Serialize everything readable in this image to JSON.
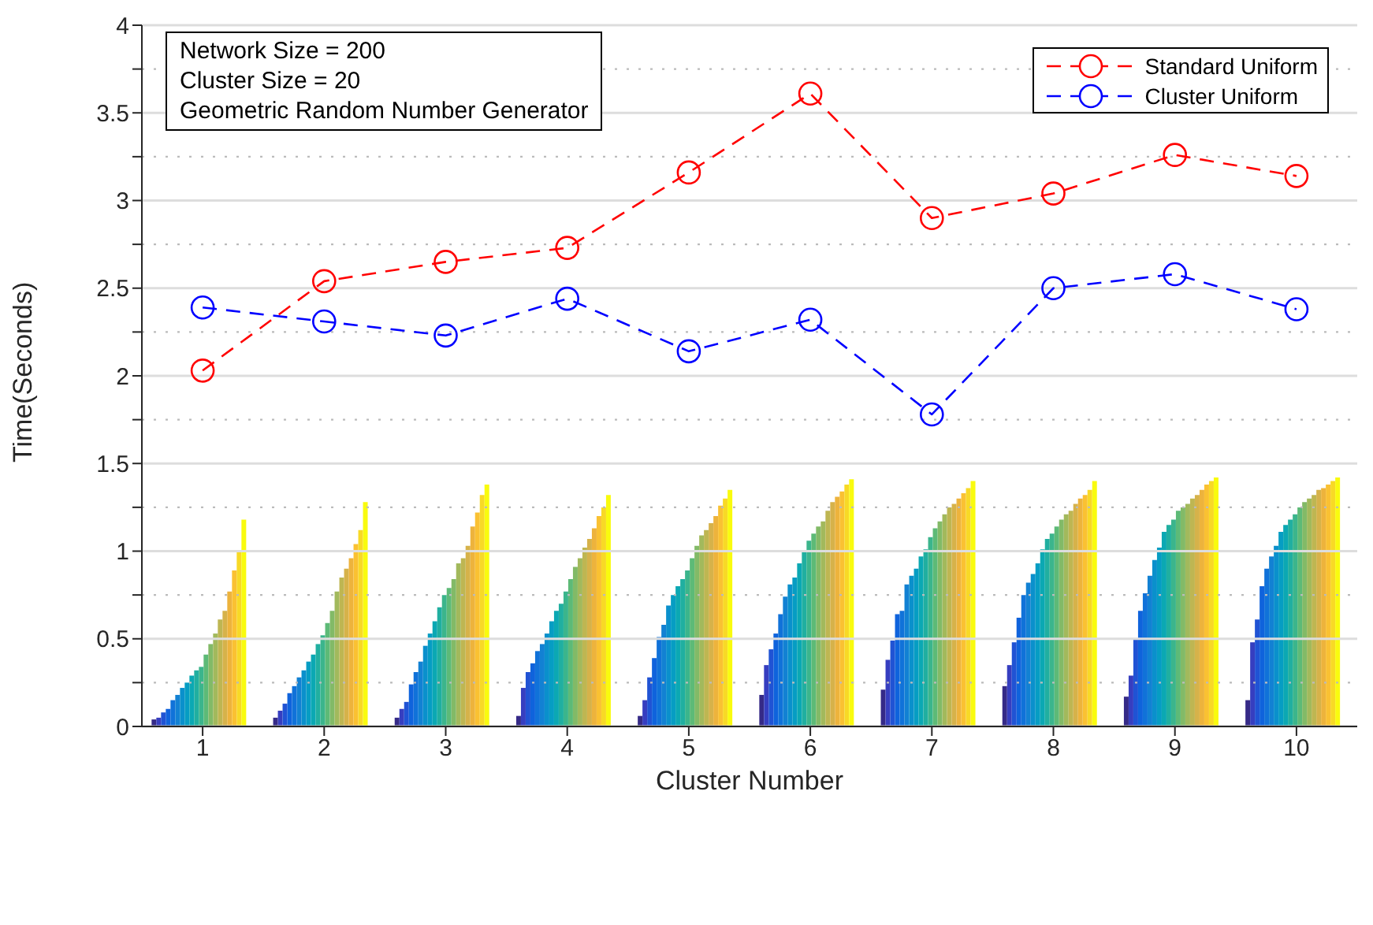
{
  "chart_data": {
    "type": "bar",
    "xlabel": "Cluster Number",
    "ylabel": "Time(Seconds)",
    "annotations": [
      "Network Size = 200",
      "Cluster Size = 20",
      "Geometric Random Number Generator"
    ],
    "categories": [
      "1",
      "2",
      "3",
      "4",
      "5",
      "6",
      "7",
      "8",
      "9",
      "10"
    ],
    "ylim": [
      0,
      4
    ],
    "yticks": [
      0,
      {
        "value": 0.25,
        "label": null
      },
      0.5,
      {
        "value": 0.75,
        "label": null
      },
      1,
      {
        "value": 1.25,
        "label": null
      },
      1.5,
      {
        "value": 1.75,
        "label": null
      },
      2,
      {
        "value": 2.25,
        "label": null
      },
      2.5,
      {
        "value": 2.75,
        "label": null
      },
      3,
      {
        "value": 3.25,
        "label": null
      },
      3.5,
      {
        "value": 3.75,
        "label": null
      },
      4
    ],
    "grid": "y",
    "legend": "top right",
    "series": [
      {
        "color": "#352a87",
        "values": [
          0.04,
          0.05,
          0.05,
          0.06,
          0.06,
          0.18,
          0.21,
          0.23,
          0.17,
          0.15
        ]
      },
      {
        "color": "#363ec0",
        "values": [
          0.05,
          0.09,
          0.1,
          0.22,
          0.15,
          0.35,
          0.38,
          0.35,
          0.29,
          0.48
        ]
      },
      {
        "color": "#2053d4",
        "values": [
          0.08,
          0.13,
          0.14,
          0.31,
          0.28,
          0.44,
          0.49,
          0.48,
          0.5,
          0.61
        ]
      },
      {
        "color": "#0f63dc",
        "values": [
          0.1,
          0.19,
          0.24,
          0.36,
          0.39,
          0.53,
          0.64,
          0.62,
          0.66,
          0.8
        ]
      },
      {
        "color": "#1072d9",
        "values": [
          0.15,
          0.23,
          0.31,
          0.43,
          0.51,
          0.64,
          0.66,
          0.75,
          0.76,
          0.9
        ]
      },
      {
        "color": "#1281d3",
        "values": [
          0.18,
          0.28,
          0.37,
          0.47,
          0.58,
          0.74,
          0.81,
          0.82,
          0.86,
          0.97
        ]
      },
      {
        "color": "#0a90cc",
        "values": [
          0.22,
          0.32,
          0.46,
          0.53,
          0.69,
          0.81,
          0.86,
          0.87,
          0.95,
          1.03
        ]
      },
      {
        "color": "#069dc3",
        "values": [
          0.25,
          0.37,
          0.53,
          0.6,
          0.75,
          0.85,
          0.9,
          0.93,
          1.02,
          1.11
        ]
      },
      {
        "color": "#0ba8b3",
        "values": [
          0.29,
          0.41,
          0.6,
          0.66,
          0.8,
          0.93,
          0.97,
          1.01,
          1.11,
          1.15
        ]
      },
      {
        "color": "#20afa0",
        "values": [
          0.32,
          0.47,
          0.68,
          0.7,
          0.84,
          1.0,
          1.01,
          1.07,
          1.15,
          1.18
        ]
      },
      {
        "color": "#3bb58c",
        "values": [
          0.34,
          0.52,
          0.75,
          0.77,
          0.89,
          1.06,
          1.08,
          1.1,
          1.18,
          1.21
        ]
      },
      {
        "color": "#5dba77",
        "values": [
          0.41,
          0.59,
          0.79,
          0.84,
          0.96,
          1.1,
          1.13,
          1.14,
          1.23,
          1.25
        ]
      },
      {
        "color": "#82ba67",
        "values": [
          0.47,
          0.66,
          0.84,
          0.91,
          1.03,
          1.14,
          1.17,
          1.18,
          1.25,
          1.28
        ]
      },
      {
        "color": "#a2b95c",
        "values": [
          0.53,
          0.77,
          0.93,
          0.96,
          1.09,
          1.17,
          1.21,
          1.21,
          1.27,
          1.3
        ]
      },
      {
        "color": "#beb652",
        "values": [
          0.61,
          0.85,
          0.96,
          1.02,
          1.12,
          1.23,
          1.25,
          1.23,
          1.3,
          1.32
        ]
      },
      {
        "color": "#d6b24a",
        "values": [
          0.66,
          0.9,
          1.03,
          1.07,
          1.16,
          1.28,
          1.27,
          1.27,
          1.32,
          1.35
        ]
      },
      {
        "color": "#edb33c",
        "values": [
          0.77,
          0.96,
          1.14,
          1.13,
          1.2,
          1.31,
          1.3,
          1.3,
          1.35,
          1.36
        ]
      },
      {
        "color": "#fac132",
        "values": [
          0.89,
          1.04,
          1.22,
          1.2,
          1.26,
          1.34,
          1.33,
          1.32,
          1.38,
          1.38
        ]
      },
      {
        "color": "#f8d926",
        "values": [
          1.0,
          1.12,
          1.32,
          1.25,
          1.3,
          1.38,
          1.36,
          1.35,
          1.4,
          1.4
        ]
      },
      {
        "color": "#f9fb0e",
        "values": [
          1.18,
          1.28,
          1.38,
          1.32,
          1.35,
          1.41,
          1.4,
          1.4,
          1.42,
          1.42
        ]
      },
      {
        "type": "line",
        "name": "Standard Uniform",
        "color": "#ff0000",
        "marker": "circle",
        "line_style": "dashed",
        "values": [
          2.03,
          2.54,
          2.65,
          2.73,
          3.16,
          3.61,
          2.9,
          3.04,
          3.26,
          3.14
        ]
      },
      {
        "type": "line",
        "name": "Cluster Uniform",
        "color": "#0000ff",
        "marker": "circle",
        "line_style": "dashed",
        "values": [
          2.39,
          2.31,
          2.23,
          2.44,
          2.14,
          2.32,
          1.78,
          2.5,
          2.58,
          2.38
        ]
      }
    ]
  }
}
